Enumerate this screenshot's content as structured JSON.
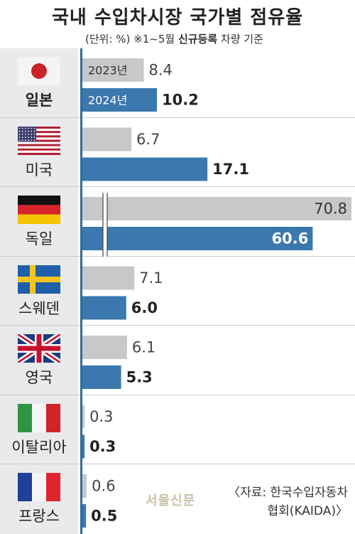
{
  "title": "국내 수입차시장 국가별 점유율",
  "subtitle_prefix": "(단위: %)  ※1~5월 ",
  "subtitle_bold": "신규등록",
  "subtitle_suffix": " 차량 기준",
  "source_line1": "〈자료: 한국수입자동차",
  "source_line2": "협회(KAIDA)〉",
  "watermark": "서울신문",
  "colors": {
    "bar_2023": "#c8c8c8",
    "bar_2024": "#3a78ad",
    "axis": "#2f6d9e",
    "left_column": "#e9eaec"
  },
  "chart_data": {
    "type": "bar",
    "orientation": "horizontal",
    "title": "국내 수입차시장 국가별 점유율",
    "unit": "%",
    "axis_break": true,
    "categories": [
      "일본",
      "미국",
      "독일",
      "스웨덴",
      "영국",
      "이탈리아",
      "프랑스"
    ],
    "flags": [
      "japan-flag",
      "usa-flag",
      "germany-flag",
      "sweden-flag",
      "uk-flag",
      "italy-flag",
      "france-flag"
    ],
    "series": [
      {
        "name": "2023년",
        "values": [
          8.4,
          6.7,
          70.8,
          7.1,
          6.1,
          0.3,
          0.6
        ]
      },
      {
        "name": "2024년",
        "values": [
          10.2,
          17.1,
          60.6,
          6.0,
          5.3,
          0.3,
          0.5
        ]
      }
    ]
  }
}
